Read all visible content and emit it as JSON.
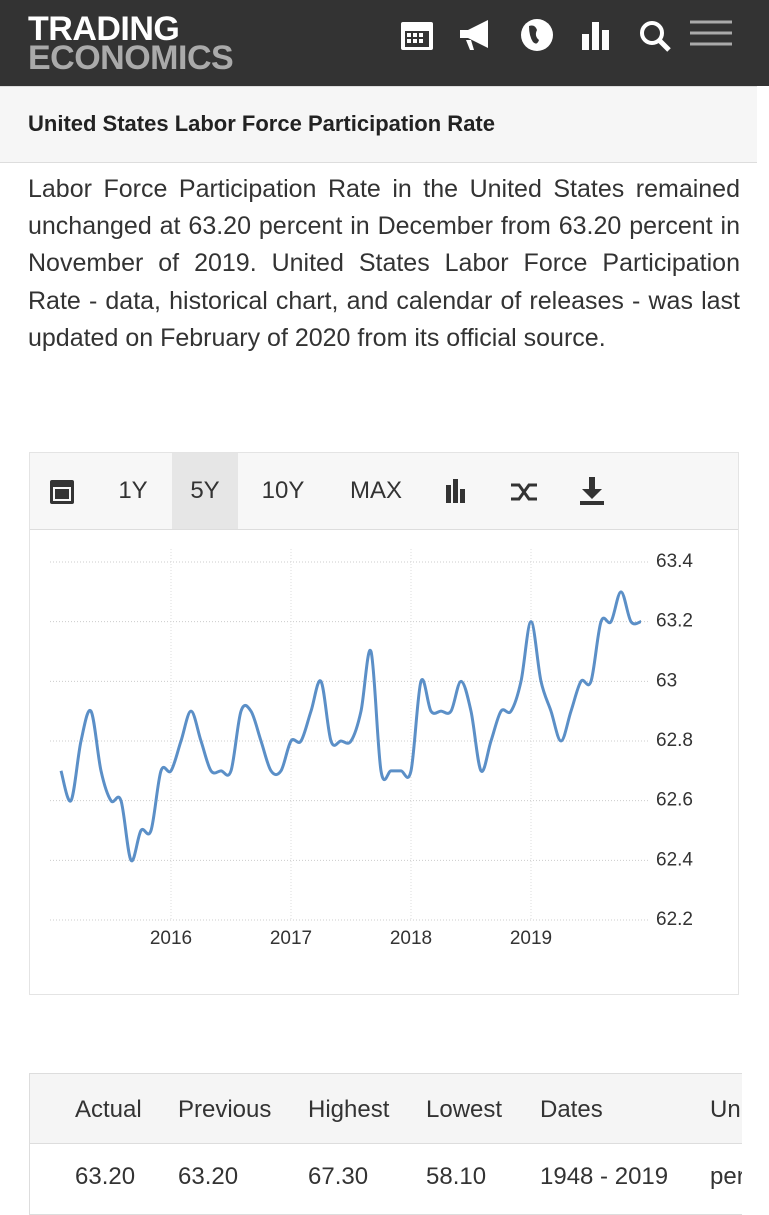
{
  "header": {
    "logo_top": "TRADING",
    "logo_bottom": "ECONOMICS"
  },
  "page_title": "United States Labor Force Participation Rate",
  "description": "Labor Force Participation Rate in the United States remained unchanged at 63.20 percent in December from 63.20 percent in November of 2019. United States Labor Force Participation Rate - data, historical chart, and calendar of releases - was last updated on February of 2020 from its official source.",
  "toolbar": {
    "ranges": [
      "1Y",
      "5Y",
      "10Y",
      "MAX"
    ],
    "active": "5Y"
  },
  "chart_data": {
    "type": "line",
    "categories": [
      null,
      null,
      null,
      null,
      null,
      null,
      null,
      null,
      null,
      null,
      null,
      "2016",
      null,
      null,
      null,
      null,
      null,
      null,
      null,
      null,
      null,
      null,
      null,
      "2017",
      null,
      null,
      null,
      null,
      null,
      null,
      null,
      null,
      null,
      null,
      null,
      "2018",
      null,
      null,
      null,
      null,
      null,
      null,
      null,
      null,
      null,
      null,
      null,
      "2019",
      null,
      null,
      null,
      null,
      null,
      null,
      null,
      null,
      null,
      null,
      null
    ],
    "series": [
      {
        "color": "#5b8fc7",
        "values": [
          62.7,
          62.6,
          62.8,
          62.9,
          62.7,
          62.6,
          62.6,
          62.4,
          62.5,
          62.5,
          62.7,
          62.7,
          62.8,
          62.9,
          62.8,
          62.7,
          62.7,
          62.7,
          62.9,
          62.9,
          62.8,
          62.7,
          62.7,
          62.8,
          62.8,
          62.9,
          63.0,
          62.8,
          62.8,
          62.8,
          62.9,
          63.1,
          62.7,
          62.7,
          62.7,
          62.7,
          63.0,
          62.9,
          62.9,
          62.9,
          63.0,
          62.9,
          62.7,
          62.8,
          62.9,
          62.9,
          63.0,
          63.2,
          63.0,
          62.9,
          62.8,
          62.9,
          63.0,
          63.0,
          63.2,
          63.2,
          63.3,
          63.2,
          63.2
        ]
      }
    ],
    "ylim": [
      62.2,
      63.4
    ],
    "yticks": [
      62.2,
      62.4,
      62.6,
      62.8,
      63,
      63.2,
      63.4
    ],
    "grid": true
  },
  "table": {
    "headers": [
      "Actual",
      "Previous",
      "Highest",
      "Lowest",
      "Dates",
      "Unit"
    ],
    "rows": [
      [
        "63.20",
        "63.20",
        "67.30",
        "58.10",
        "1948 - 2019",
        "percent"
      ]
    ]
  }
}
